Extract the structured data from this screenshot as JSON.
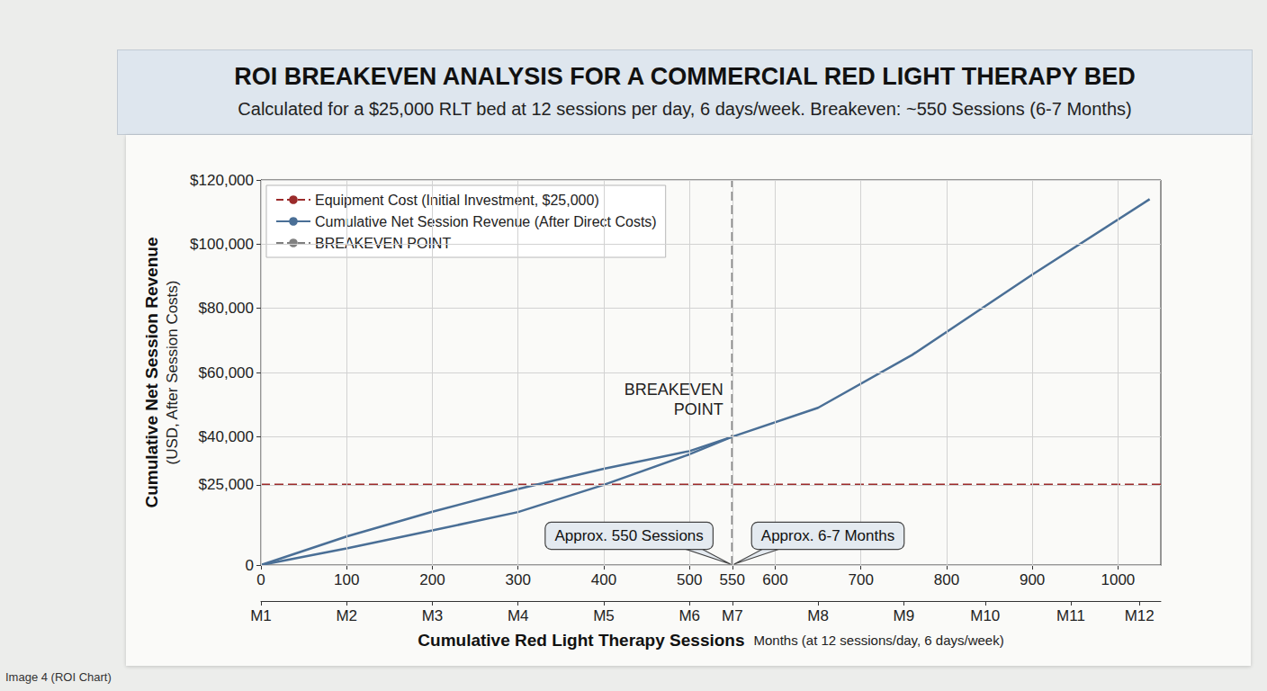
{
  "caption": "Image 4 (ROI Chart)",
  "chart_data": {
    "type": "line",
    "title": "ROI BREAKEVEN ANALYSIS FOR A COMMERCIAL RED LIGHT THERAPY BED",
    "subtitle": "Calculated for a $25,000 RLT bed at 12 sessions per day, 6 days/week. Breakeven: ~550 Sessions (6-7 Months)",
    "x_label": "Cumulative Red Light Therapy Sessions",
    "x2_label": "Months (at 12 sessions/day, 6 days/week)",
    "y_label": "Cumulative Net Session Revenue",
    "y_sublabel": "(USD, After Session Costs)",
    "xlim": [
      0,
      1050
    ],
    "xticks": [
      0,
      100,
      200,
      300,
      400,
      500,
      550,
      600,
      700,
      800,
      900,
      1000
    ],
    "x2lim": [
      0,
      1050
    ],
    "x2ticks": [
      {
        "value": 0,
        "label": "M1"
      },
      {
        "value": 100,
        "label": "M2"
      },
      {
        "value": 200,
        "label": "M3"
      },
      {
        "value": 300,
        "label": "M4"
      },
      {
        "value": 400,
        "label": "M5"
      },
      {
        "value": 500,
        "label": "M6"
      },
      {
        "value": 550,
        "label": "M7"
      },
      {
        "value": 650,
        "label": "M8"
      },
      {
        "value": 750,
        "label": "M9"
      },
      {
        "value": 845,
        "label": "M10"
      },
      {
        "value": 945,
        "label": "M11"
      },
      {
        "value": 1025,
        "label": "M12"
      }
    ],
    "ylim": [
      0,
      120000
    ],
    "yticks": [
      0,
      {
        "value": 25000,
        "label": "$25,000"
      },
      {
        "value": 40000,
        "label": "$40,000"
      },
      {
        "value": 60000,
        "label": "$60,000"
      },
      {
        "value": 80000,
        "label": "$80,000"
      },
      {
        "value": 100000,
        "label": "$100,000"
      },
      {
        "value": 120000,
        "label": "$120,000"
      }
    ],
    "grid": true,
    "legend": "upper left",
    "series": [
      {
        "name": "Equipment Cost (Initial Investment, $25,000)",
        "color": "#9b2b2b",
        "line_style": "dashed",
        "x": [
          0,
          1050
        ],
        "values": [
          25000,
          25000
        ]
      },
      {
        "name": "Cumulative Net Session Revenue (After Direct Costs)",
        "color": "#4a6f96",
        "line_style": "solid",
        "x": [
          0,
          100,
          200,
          300,
          400,
          500,
          550,
          650,
          760,
          900,
          1037
        ],
        "values": [
          0,
          8900,
          16600,
          23700,
          30000,
          35500,
          40000,
          49000,
          65500,
          90500,
          114000
        ]
      },
      {
        "name": "BREAKEVEN POINT",
        "color": "#808080",
        "line_style": "dashed",
        "x": [
          550,
          550
        ],
        "values": [
          0,
          120000
        ]
      },
      {
        "name": null,
        "color": "#4a6f96",
        "line_style": "solid",
        "x": [
          0,
          100,
          200,
          300,
          400,
          500,
          550
        ],
        "values": [
          0,
          5200,
          10800,
          16500,
          25000,
          34500,
          40000
        ]
      }
    ],
    "annotations": [
      {
        "text": "BREAKEVEN POINT",
        "x": 550
      },
      {
        "text": "Approx. 550 Sessions",
        "x": 550
      },
      {
        "text": "Approx. 6-7 Months",
        "x": 550
      }
    ]
  }
}
